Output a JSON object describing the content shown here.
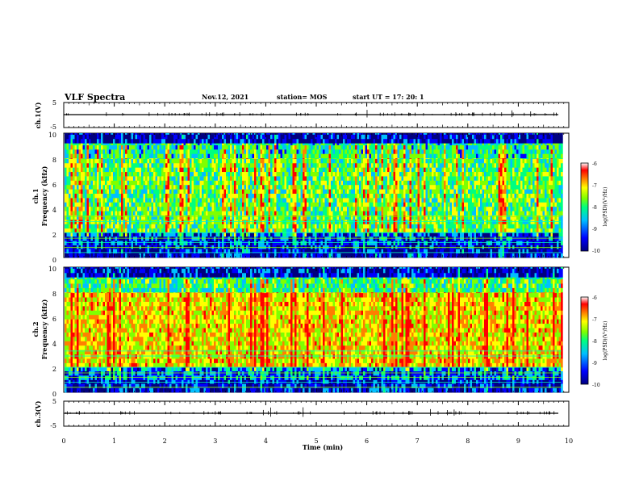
{
  "header": {
    "title": "VLF Spectra",
    "date": "Nov.12, 2021",
    "station": "station= MOS",
    "start": "start  UT =   17: 20: 1"
  },
  "chart_data": [
    {
      "type": "line",
      "panel": "ch1 waveform",
      "ylabel": "ch.1(V)",
      "ylim": [
        -5,
        5
      ],
      "y_ticks": [
        5,
        -5
      ],
      "x_range": [
        0,
        10
      ],
      "baseline": 0,
      "description_values": "flat trace near 0 V with small spikes"
    },
    {
      "type": "heatmap",
      "panel": "ch1 spectrogram",
      "ylabel_line1": "ch.1",
      "ylabel_line2": "Frequency (kHz)",
      "ylim": [
        0,
        10
      ],
      "y_ticks": [
        0,
        2,
        4,
        6,
        8,
        10
      ],
      "x_range": [
        0,
        9.85
      ],
      "colorbar": {
        "label": "log(PSD)(V²/Hz)",
        "range": [
          -10,
          -6
        ],
        "ticks": [
          -6,
          -7,
          -8,
          -9,
          -10
        ]
      },
      "band_level": {
        "0-1": -9.5,
        "1-2": -9.2,
        "2-8": -8.0,
        "8-9.2": -8.3,
        "9.2-10": -9.6
      }
    },
    {
      "type": "heatmap",
      "panel": "ch2 spectrogram",
      "ylabel_line1": "ch.2",
      "ylabel_line2": "Frequency (kHz)",
      "ylim": [
        0,
        10
      ],
      "y_ticks": [
        0,
        2,
        4,
        6,
        8,
        10
      ],
      "x_range": [
        0,
        9.85
      ],
      "colorbar": {
        "label": "log(PSD)(V²/Hz)",
        "range": [
          -10,
          -6
        ],
        "ticks": [
          -6,
          -7,
          -8,
          -9,
          -10
        ]
      },
      "band_level": {
        "0-1": -9.4,
        "1-2": -9.0,
        "2-8": -7.2,
        "8-9.2": -8.2,
        "9.2-10": -9.5
      }
    },
    {
      "type": "line",
      "panel": "ch3 waveform",
      "ylabel": "ch.3(V)",
      "ylim": [
        -5,
        5
      ],
      "y_ticks": [
        5,
        -5
      ],
      "x_range": [
        0,
        10
      ],
      "baseline": 0
    }
  ],
  "x_axis": {
    "label": "Time (min)",
    "ticks": [
      "0",
      "1",
      "2",
      "3",
      "4",
      "5",
      "6",
      "7",
      "8",
      "9",
      "10"
    ]
  },
  "colormap": [
    "#00007f",
    "#0000ff",
    "#00bfff",
    "#00ff7f",
    "#7fff00",
    "#ffff00",
    "#ff7f00",
    "#ff0000",
    "#ffffff"
  ]
}
